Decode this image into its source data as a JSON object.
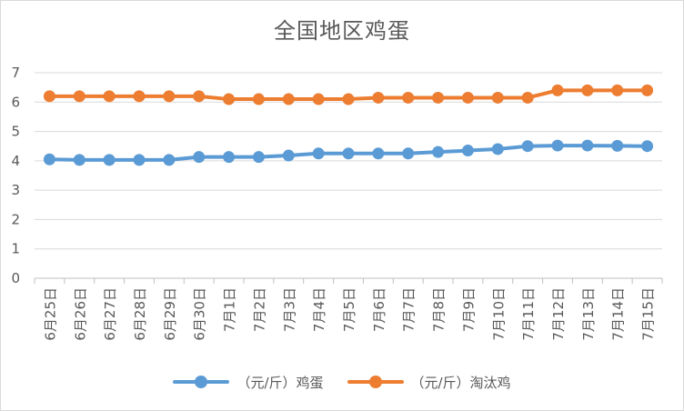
{
  "chart_data": {
    "type": "line",
    "title": "全国地区鸡蛋",
    "categories": [
      "6月25日",
      "6月26日",
      "6月27日",
      "6月28日",
      "6月29日",
      "6月30日",
      "7月1日",
      "7月2日",
      "7月3日",
      "7月4日",
      "7月5日",
      "7月6日",
      "7月7日",
      "7月8日",
      "7月9日",
      "7月10日",
      "7月11日",
      "7月12日",
      "7月13日",
      "7月14日",
      "7月15日"
    ],
    "series": [
      {
        "name": "（元/斤）鸡蛋",
        "color": "#5b9bd5",
        "values": [
          4.05,
          4.03,
          4.03,
          4.03,
          4.03,
          4.13,
          4.13,
          4.13,
          4.18,
          4.25,
          4.25,
          4.25,
          4.25,
          4.3,
          4.35,
          4.4,
          4.5,
          4.52,
          4.52,
          4.51,
          4.5
        ]
      },
      {
        "name": "（元/斤）淘汰鸡",
        "color": "#ed7d31",
        "values": [
          6.2,
          6.2,
          6.2,
          6.2,
          6.2,
          6.2,
          6.1,
          6.1,
          6.1,
          6.1,
          6.1,
          6.15,
          6.15,
          6.15,
          6.15,
          6.15,
          6.15,
          6.4,
          6.4,
          6.4,
          6.4
        ]
      }
    ],
    "yticks": [
      "0",
      "1",
      "2",
      "3",
      "4",
      "5",
      "6",
      "7"
    ],
    "ylim": [
      0,
      7
    ],
    "grid": true,
    "legend_position": "bottom"
  }
}
